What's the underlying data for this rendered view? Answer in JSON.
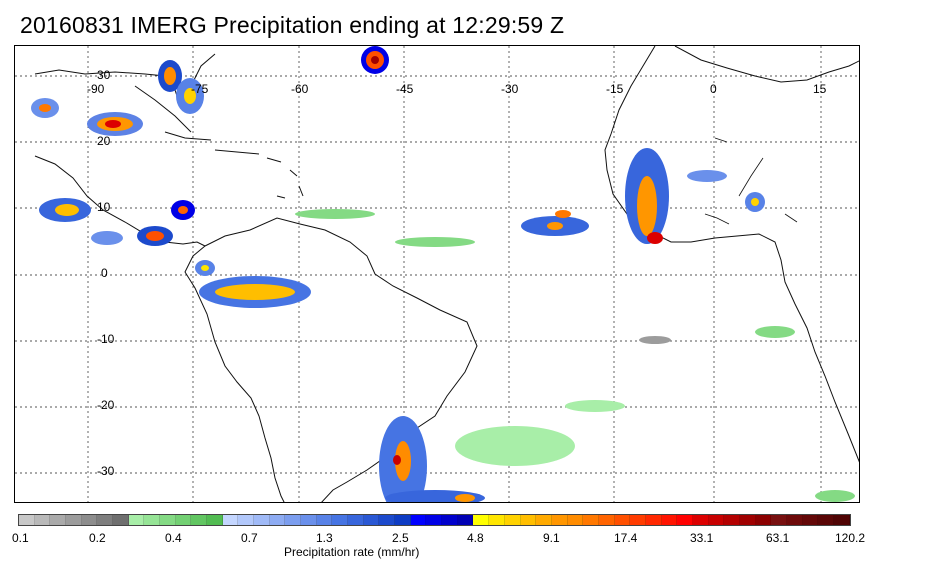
{
  "title": "20160831 IMERG Precipitation ending at 12:29:59 Z",
  "map": {
    "lon_labels": [
      "-90",
      "-75",
      "-60",
      "-45",
      "-30",
      "-15",
      "0",
      "15"
    ],
    "lat_labels": [
      "30",
      "20",
      "10",
      "0",
      "-10",
      "-20",
      "-30"
    ],
    "gridline_style": "dotted"
  },
  "colorbar": {
    "title": "Precipitation rate (mm/hr)",
    "labels": [
      "0.1",
      "0.2",
      "0.4",
      "0.7",
      "1.3",
      "2.5",
      "4.8",
      "9.1",
      "17.4",
      "33.1",
      "63.1",
      "120.2"
    ],
    "colors": [
      "#c8c8c8",
      "#b9b9b9",
      "#aaaaaa",
      "#9c9c9c",
      "#8d8d8d",
      "#7e7e7e",
      "#6f6f6f",
      "#a8eea8",
      "#96e496",
      "#84da84",
      "#73d073",
      "#62c662",
      "#52bc52",
      "#c4d6ff",
      "#b2c8fb",
      "#a0baf7",
      "#8eacf3",
      "#7c9eef",
      "#6a90eb",
      "#5882e7",
      "#4674e3",
      "#3866dc",
      "#2a58d4",
      "#1c4acc",
      "#0e3cc4",
      "#0000ff",
      "#0000e6",
      "#0000cc",
      "#0000b4",
      "#ffff00",
      "#ffe600",
      "#ffd200",
      "#ffbe00",
      "#ffaa00",
      "#ff9600",
      "#ff8c00",
      "#ff7800",
      "#ff6400",
      "#ff5000",
      "#ff3c00",
      "#ff2800",
      "#ff1400",
      "#ff0000",
      "#dc0000",
      "#c80000",
      "#b40000",
      "#a00000",
      "#8c0000",
      "#781010",
      "#6e0a0a",
      "#640808",
      "#5a0606",
      "#500404"
    ]
  }
}
